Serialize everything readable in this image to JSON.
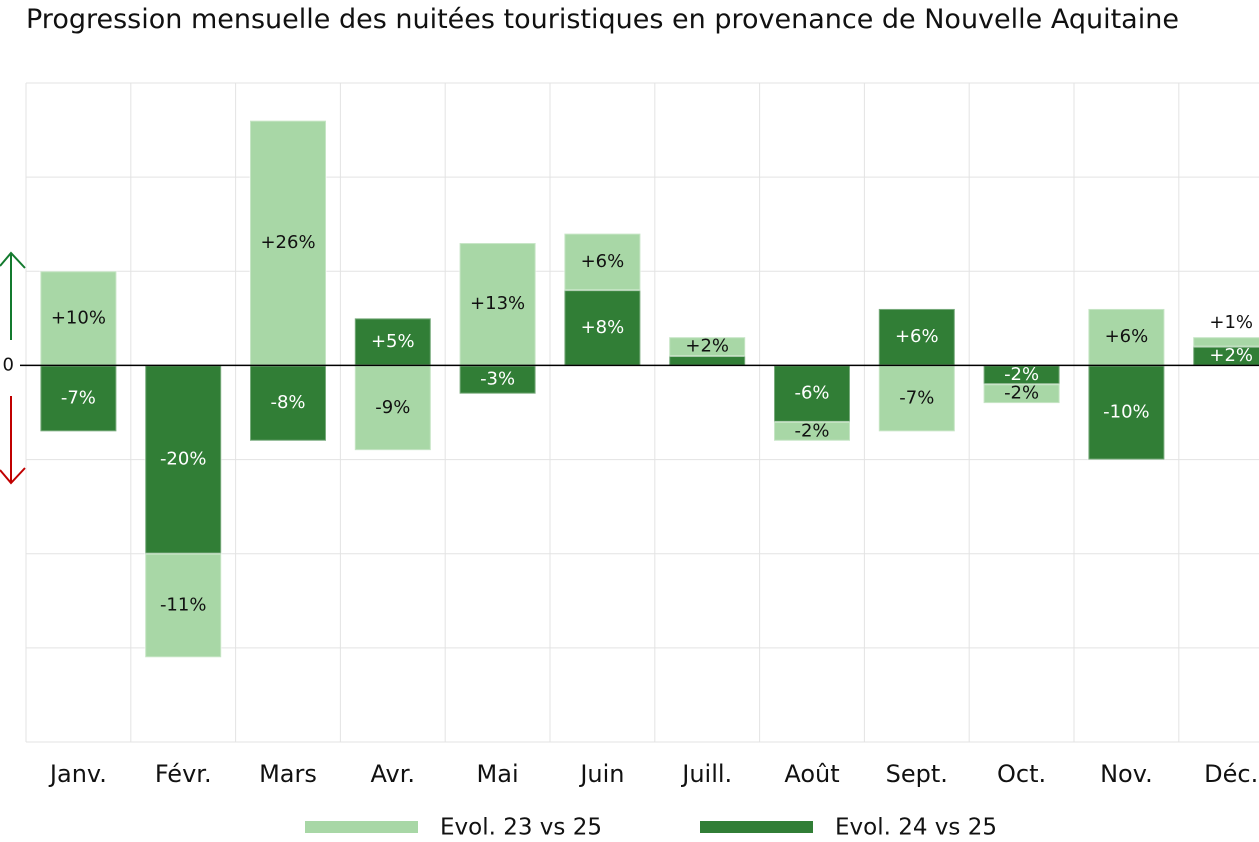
{
  "chart_data": {
    "type": "bar",
    "stacked": true,
    "title": "Progression mensuelle des nuitées touristiques en provenance de Nouvelle Aquitaine",
    "categories": [
      "Janv.",
      "Févr.",
      "Mars",
      "Avr.",
      "Mai",
      "Juin",
      "Juill.",
      "Août",
      "Sept.",
      "Oct.",
      "Nov.",
      "Déc."
    ],
    "series": [
      {
        "name": "Evol. 24 vs 25",
        "color": "#317e36",
        "values": [
          -7,
          -20,
          -8,
          5,
          -3,
          8,
          1,
          -6,
          6,
          -2,
          -10,
          2
        ],
        "value_labels": [
          "-7%",
          "-20%",
          "-8%",
          "+5%",
          "-3%",
          "+8%",
          null,
          "-6%",
          "+6%",
          "-2%",
          "-10%",
          "+2%"
        ]
      },
      {
        "name": "Evol. 23 vs 25",
        "color": "#a8d7a6",
        "values": [
          10,
          -11,
          26,
          -9,
          13,
          6,
          2,
          -2,
          -7,
          -2,
          6,
          1
        ],
        "value_labels": [
          "+10%",
          "-11%",
          "+26%",
          "-9%",
          "+13%",
          "+6%",
          "+2%",
          "-2%",
          "-7%",
          "-2%",
          "+6%",
          "+1%"
        ]
      }
    ],
    "legend_order": [
      1,
      0
    ],
    "ylim": [
      -40,
      30
    ],
    "yticks": [
      0
    ],
    "ygrid": [
      -40,
      -30,
      -20,
      -10,
      10,
      20,
      30
    ],
    "grid": true
  }
}
